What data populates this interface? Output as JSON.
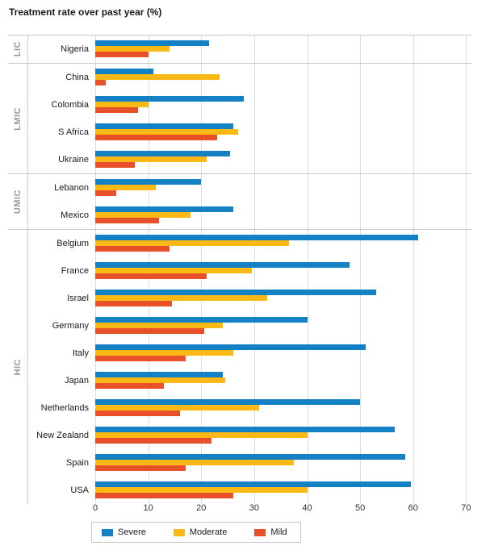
{
  "title": "Treatment rate over past year (%)",
  "colors": {
    "severe": "#1581c5",
    "moderate": "#fcb814",
    "mild": "#e8502a",
    "grid": "#dcdcdc",
    "border": "#c8c8c8",
    "group_label_text": "#999999",
    "text": "#1a1a1a"
  },
  "legend": {
    "items": [
      {
        "label": "Severe",
        "color_key": "severe"
      },
      {
        "label": "Moderate",
        "color_key": "moderate"
      },
      {
        "label": "Mild",
        "color_key": "mild"
      }
    ]
  },
  "chart_data": {
    "type": "bar",
    "orientation": "horizontal",
    "title": "Treatment rate over past year (%)",
    "xlabel": "",
    "ylabel": "",
    "xlim": [
      0,
      70
    ],
    "x_ticks": [
      0,
      10,
      20,
      30,
      40,
      50,
      60,
      70
    ],
    "grid": true,
    "legend_position": "bottom",
    "series_keys": [
      "severe",
      "moderate",
      "mild"
    ],
    "series_names": [
      "Severe",
      "Moderate",
      "Mild"
    ],
    "groups": [
      {
        "label": "LIC",
        "countries": [
          {
            "name": "Nigeria",
            "severe": 21.5,
            "moderate": 14,
            "mild": 10
          }
        ]
      },
      {
        "label": "LMIC",
        "countries": [
          {
            "name": "China",
            "severe": 11,
            "moderate": 23.5,
            "mild": 2
          },
          {
            "name": "Colombia",
            "severe": 28,
            "moderate": 10,
            "mild": 8
          },
          {
            "name": "S Africa",
            "severe": 26,
            "moderate": 27,
            "mild": 23
          },
          {
            "name": "Ukraine",
            "severe": 25.5,
            "moderate": 21,
            "mild": 7.5
          }
        ]
      },
      {
        "label": "UMIC",
        "countries": [
          {
            "name": "Lebanon",
            "severe": 20,
            "moderate": 11.5,
            "mild": 4
          },
          {
            "name": "Mexico",
            "severe": 26,
            "moderate": 18,
            "mild": 12
          }
        ]
      },
      {
        "label": "HIC",
        "countries": [
          {
            "name": "Belgium",
            "severe": 61,
            "moderate": 36.5,
            "mild": 14
          },
          {
            "name": "France",
            "severe": 48,
            "moderate": 29.5,
            "mild": 21
          },
          {
            "name": "Israel",
            "severe": 53,
            "moderate": 32.5,
            "mild": 14.5
          },
          {
            "name": "Germany",
            "severe": 40,
            "moderate": 24,
            "mild": 20.5
          },
          {
            "name": "Italy",
            "severe": 51,
            "moderate": 26,
            "mild": 17
          },
          {
            "name": "Japan",
            "severe": 24,
            "moderate": 24.5,
            "mild": 13
          },
          {
            "name": "Netherlands",
            "severe": 50,
            "moderate": 31,
            "mild": 16
          },
          {
            "name": "New Zealand",
            "severe": 56.5,
            "moderate": 40,
            "mild": 22
          },
          {
            "name": "Spain",
            "severe": 58.5,
            "moderate": 37.5,
            "mild": 17
          },
          {
            "name": "USA",
            "severe": 59.5,
            "moderate": 40,
            "mild": 26
          }
        ]
      }
    ]
  }
}
